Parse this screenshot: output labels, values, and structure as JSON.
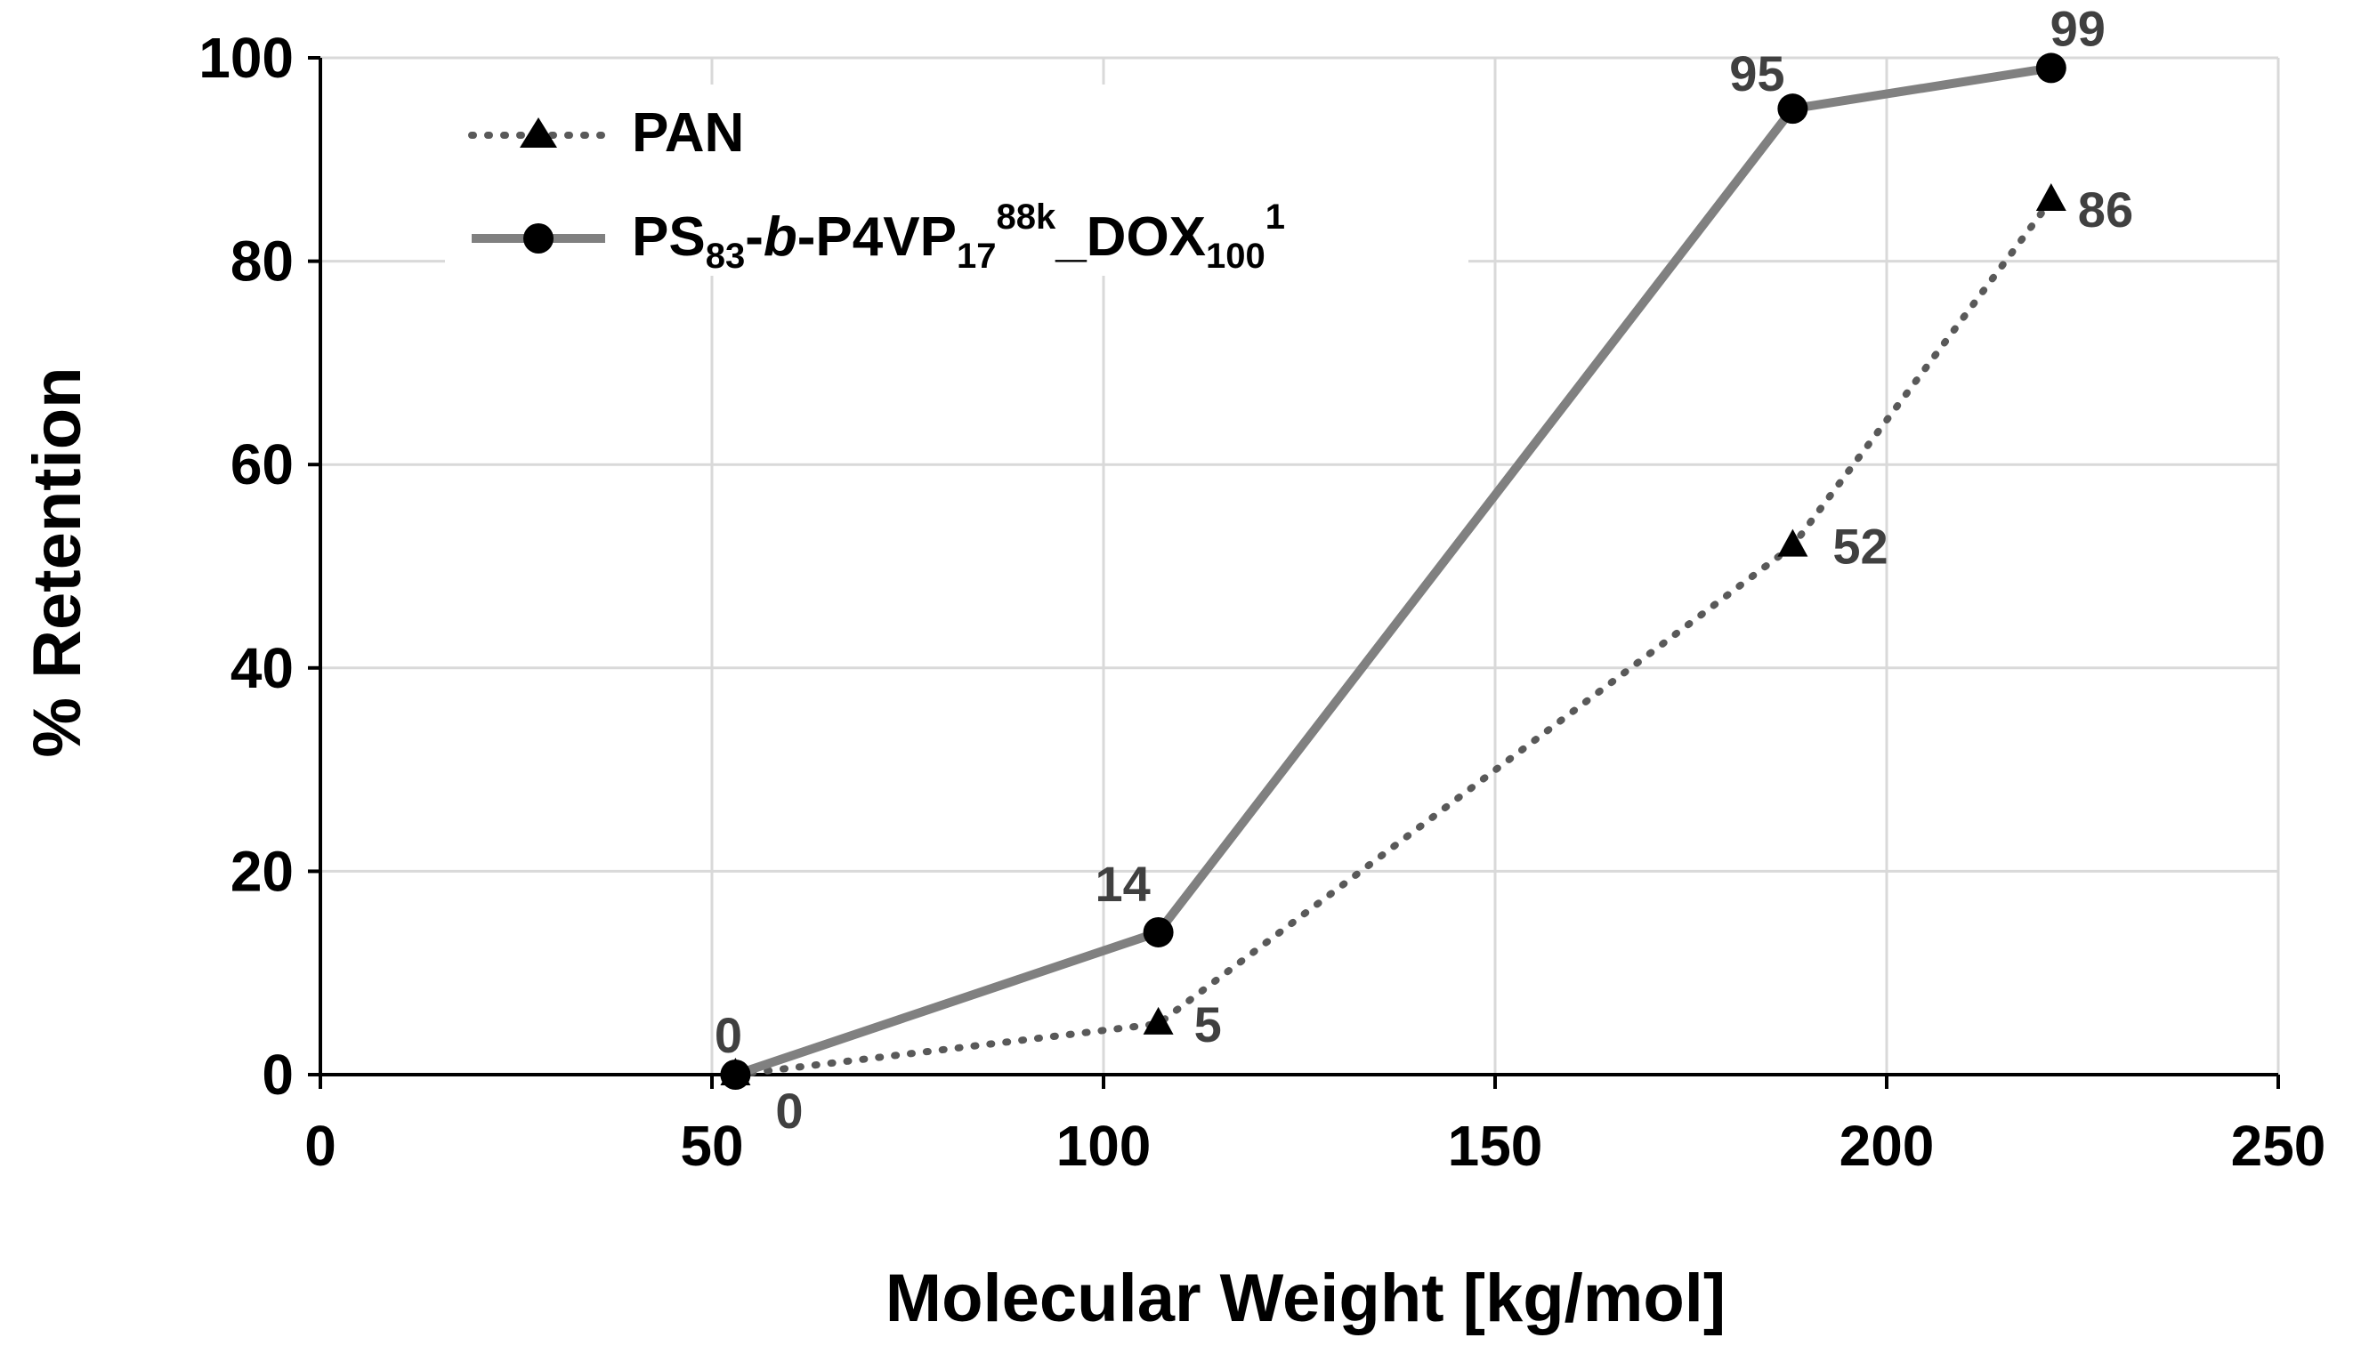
{
  "chart_data": {
    "type": "line",
    "title": "",
    "xlabel": "Molecular Weight [kg/mol]",
    "ylabel": "% Retention",
    "xlim": [
      0,
      250
    ],
    "ylim": [
      0,
      100
    ],
    "xticks": [
      0,
      50,
      100,
      150,
      200,
      250
    ],
    "yticks": [
      0,
      20,
      40,
      60,
      80,
      100
    ],
    "xtick_labels": [
      "0",
      "50",
      "100",
      "150",
      "200",
      "250"
    ],
    "ytick_labels": [
      "0",
      "20",
      "40",
      "60",
      "80",
      "100"
    ],
    "grid": true,
    "legend_position": "top-left",
    "series": [
      {
        "name": "PAN",
        "marker": "triangle",
        "line_style": "dotted",
        "color": "#595959",
        "x": [
          53,
          107,
          188,
          221
        ],
        "y": [
          0,
          5,
          52,
          86
        ],
        "labels": [
          "0",
          "5",
          "52",
          "86"
        ]
      },
      {
        "name": "PS83-b-P4VP17 88k_DOX100 1",
        "legend_parts": {
          "a": "PS",
          "a_sub": "83",
          "b": "-",
          "b_italic": "b",
          "c": "-P4VP",
          "c_sub": "17",
          "c_sup": "88k",
          "d": "_DOX",
          "d_sub": "100",
          "d_sup": "1"
        },
        "marker": "circle",
        "line_style": "solid",
        "color": "#808080",
        "x": [
          53,
          107,
          188,
          221
        ],
        "y": [
          0,
          14,
          95,
          99
        ],
        "labels": [
          "0",
          "14",
          "95",
          "99"
        ]
      }
    ]
  }
}
